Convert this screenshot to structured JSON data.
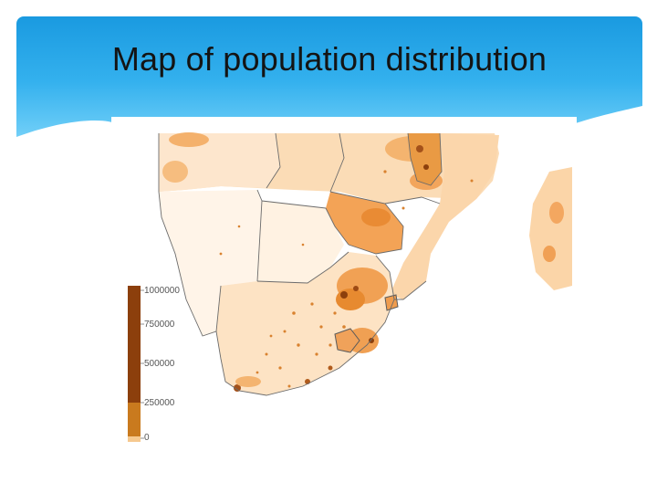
{
  "slide": {
    "title": "Map of population distribution"
  },
  "legend": {
    "ticks": [
      "1000000",
      "750000",
      "500000",
      "250000",
      "0"
    ],
    "colors": {
      "high": "#8c3f0c",
      "mid": "#c97a1e",
      "low": "#f6c98f",
      "none": "#fff8f0"
    }
  },
  "map": {
    "region": "southern-africa",
    "fill_light": "#fde8cf",
    "fill_medium": "#f9c992",
    "fill_dense": "#e7933a",
    "border_color": "#6b6b6b"
  }
}
